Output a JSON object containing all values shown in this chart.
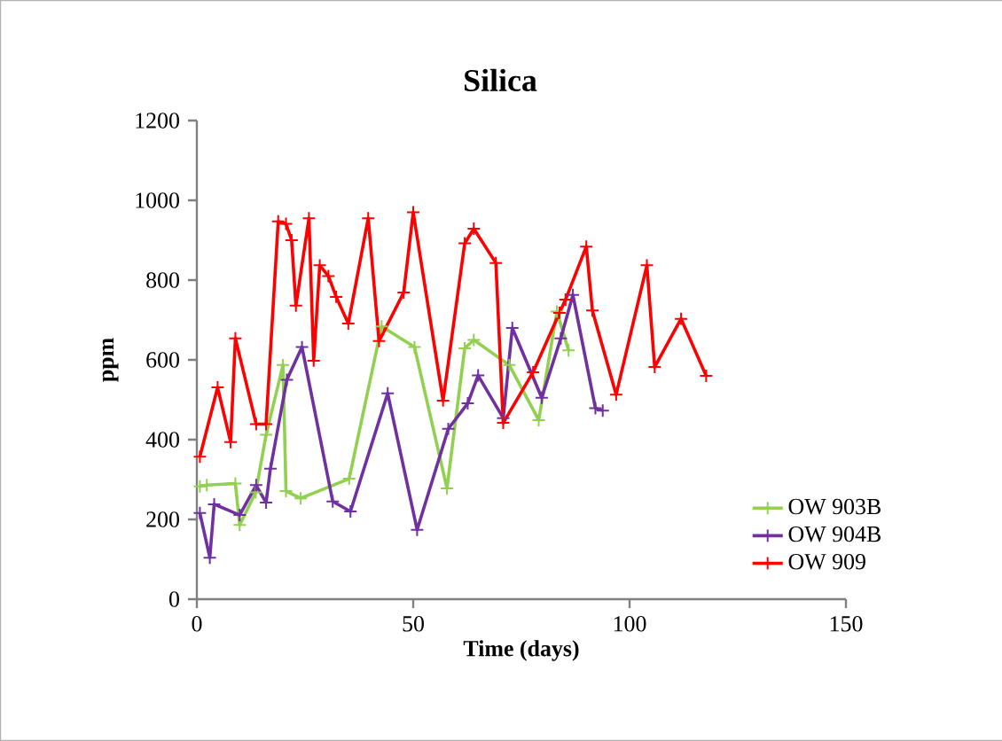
{
  "chart_data": {
    "type": "line",
    "title": "Silica",
    "xlabel": "Time (days)",
    "ylabel": "ppm",
    "xlim": [
      0,
      150
    ],
    "xticks": [
      0,
      50,
      100,
      150
    ],
    "ylim": [
      0,
      1200
    ],
    "yticks": [
      0,
      200,
      400,
      600,
      800,
      1000,
      1200
    ],
    "grid": false,
    "legend": "bottom right",
    "marker": "cross",
    "line_style": "solid",
    "series": [
      {
        "name": "OW 903B",
        "color": "#92d050",
        "x": [
          0.7,
          2.3,
          8.9,
          9.9,
          13.6,
          16,
          19.9,
          20.6,
          24,
          35.2,
          42.7,
          50.3,
          57.8,
          61.9,
          64,
          72.2,
          79,
          83.2,
          85.9
        ],
        "values": [
          283,
          286,
          290,
          186,
          268,
          412,
          587,
          271,
          253,
          302,
          684,
          632,
          278,
          629,
          650,
          587,
          449,
          721,
          624
        ]
      },
      {
        "name": "OW 904B",
        "color": "#7030a0",
        "x": [
          0.7,
          3,
          4,
          9.9,
          13.7,
          16,
          17,
          20.8,
          24.3,
          31.4,
          35.5,
          44.1,
          50.9,
          58.1,
          62.6,
          65,
          70.8,
          72.9,
          79.7,
          84.1,
          86.9,
          92.1,
          93.8
        ],
        "values": [
          216,
          104,
          238,
          211,
          286,
          242,
          327,
          550,
          632,
          245,
          220,
          516,
          174,
          427,
          491,
          561,
          454,
          680,
          505,
          654,
          763,
          479,
          473
        ]
      },
      {
        "name": "OW 909",
        "color": "#ff0000",
        "x": [
          0.7,
          4.8,
          7.8,
          8.9,
          13.7,
          16,
          18.8,
          20.6,
          21.9,
          22.9,
          25.9,
          27,
          28.4,
          30.4,
          32.2,
          35,
          39.6,
          42.1,
          47.8,
          50,
          56.9,
          61.9,
          64,
          69.1,
          70.8,
          77.7,
          83.8,
          85.2,
          90,
          91.4,
          96.9,
          104,
          105.8,
          111.9,
          117.7
        ],
        "values": [
          357,
          531,
          394,
          654,
          439,
          439,
          947,
          941,
          900,
          736,
          955,
          598,
          837,
          810,
          758,
          691,
          955,
          647,
          769,
          970,
          498,
          892,
          929,
          843,
          442,
          569,
          718,
          751,
          884,
          724,
          513,
          837,
          582,
          703,
          560
        ]
      }
    ]
  }
}
